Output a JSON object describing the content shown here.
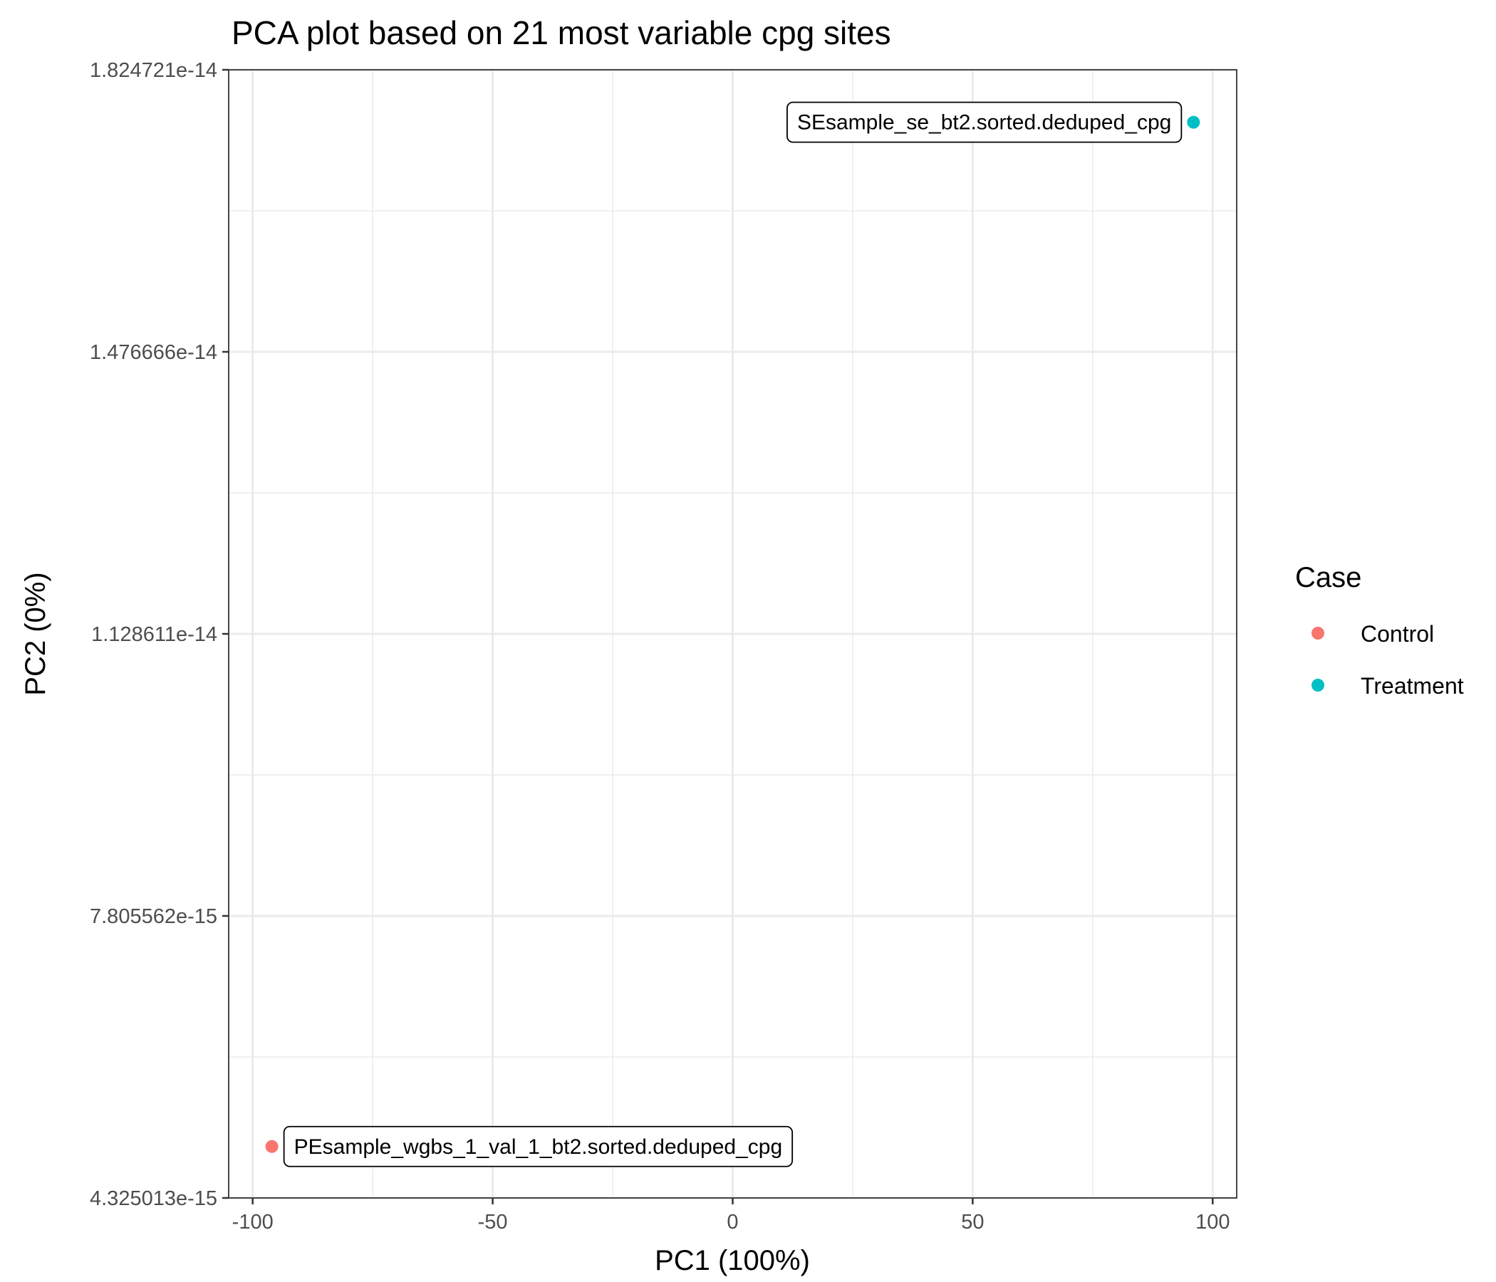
{
  "chart_data": {
    "type": "scatter",
    "title": "PCA plot based on 21 most variable cpg  sites",
    "xlabel": "PC1 (100%)",
    "ylabel": "PC2 (0%)",
    "xlim": [
      -105,
      105
    ],
    "ylim": [
      4.325013e-15,
      1.824721e-14
    ],
    "x_ticks": [
      {
        "value": -100,
        "label": "-100"
      },
      {
        "value": -50,
        "label": "-50"
      },
      {
        "value": 0,
        "label": "0"
      },
      {
        "value": 50,
        "label": "50"
      },
      {
        "value": 100,
        "label": "100"
      }
    ],
    "y_ticks": [
      {
        "value": 4.325013e-15,
        "label": "4.325013e-15"
      },
      {
        "value": 7.805562e-15,
        "label": "7.805562e-15"
      },
      {
        "value": 1.128611e-14,
        "label": "1.128611e-14"
      },
      {
        "value": 1.476666e-14,
        "label": "1.476666e-14"
      },
      {
        "value": 1.824721e-14,
        "label": "1.824721e-14"
      }
    ],
    "grid": true,
    "legend": {
      "title": "Case",
      "position": "right",
      "entries": [
        {
          "label": "Control",
          "color": "#f8766d"
        },
        {
          "label": "Treatment",
          "color": "#00bfc4"
        }
      ]
    },
    "series": [
      {
        "name": "Control",
        "color": "#f8766d",
        "points": [
          {
            "x": -96,
            "y": 4.96e-15,
            "label": "PEsample_wgbs_1_val_1_bt2.sorted.deduped_cpg"
          }
        ]
      },
      {
        "name": "Treatment",
        "color": "#00bfc4",
        "points": [
          {
            "x": 96,
            "y": 1.76e-14,
            "label": "SEsample_se_bt2.sorted.deduped_cpg"
          }
        ]
      }
    ]
  }
}
